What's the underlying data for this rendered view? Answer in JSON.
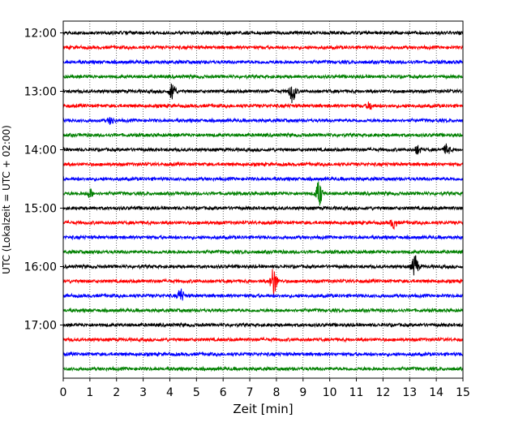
{
  "chart_data": {
    "type": "line",
    "title": "",
    "xlabel": "Zeit  [min]",
    "ylabel": "UTC (Lokalzeit = UTC + 02:00)",
    "xlim": [
      0,
      15
    ],
    "xticks": [
      0,
      1,
      2,
      3,
      4,
      5,
      6,
      7,
      8,
      9,
      10,
      11,
      12,
      13,
      14,
      15
    ],
    "xtick_labels": [
      "0",
      "1",
      "2",
      "3",
      "4",
      "5",
      "6",
      "7",
      "8",
      "9",
      "10",
      "11",
      "12",
      "13",
      "14",
      "15"
    ],
    "ytick_labels": [
      "12:00",
      "13:00",
      "14:00",
      "15:00",
      "16:00",
      "17:00"
    ],
    "ytick_rows": [
      0,
      4,
      8,
      12,
      16,
      20
    ],
    "x_grid": true,
    "trace_duration_min": 15,
    "traces_per_hour": 4,
    "row_start_times_utc": [
      "12:00",
      "12:15",
      "12:30",
      "12:45",
      "13:00",
      "13:15",
      "13:30",
      "13:45",
      "14:00",
      "14:15",
      "14:30",
      "14:45",
      "15:00",
      "15:15",
      "15:30",
      "15:45",
      "16:00",
      "16:15",
      "16:30",
      "16:45",
      "17:00",
      "17:15",
      "17:30",
      "17:45"
    ],
    "trace_colors": [
      "#000000",
      "#ff0000",
      "#0000ff",
      "#008000"
    ],
    "events": [
      {
        "row": 4,
        "minute": 4.1,
        "amplitude": 0.8
      },
      {
        "row": 4,
        "minute": 8.6,
        "amplitude": 1.0
      },
      {
        "row": 5,
        "minute": 11.5,
        "amplitude": 0.3
      },
      {
        "row": 6,
        "minute": 1.8,
        "amplitude": 0.3
      },
      {
        "row": 8,
        "minute": 13.3,
        "amplitude": 0.35
      },
      {
        "row": 8,
        "minute": 14.4,
        "amplitude": 0.45
      },
      {
        "row": 11,
        "minute": 1.0,
        "amplitude": 0.35
      },
      {
        "row": 11,
        "minute": 9.6,
        "amplitude": 1.1
      },
      {
        "row": 13,
        "minute": 12.4,
        "amplitude": 0.45
      },
      {
        "row": 16,
        "minute": 13.2,
        "amplitude": 1.0
      },
      {
        "row": 17,
        "minute": 7.9,
        "amplitude": 1.3
      },
      {
        "row": 18,
        "minute": 4.4,
        "amplitude": 0.6
      }
    ]
  }
}
